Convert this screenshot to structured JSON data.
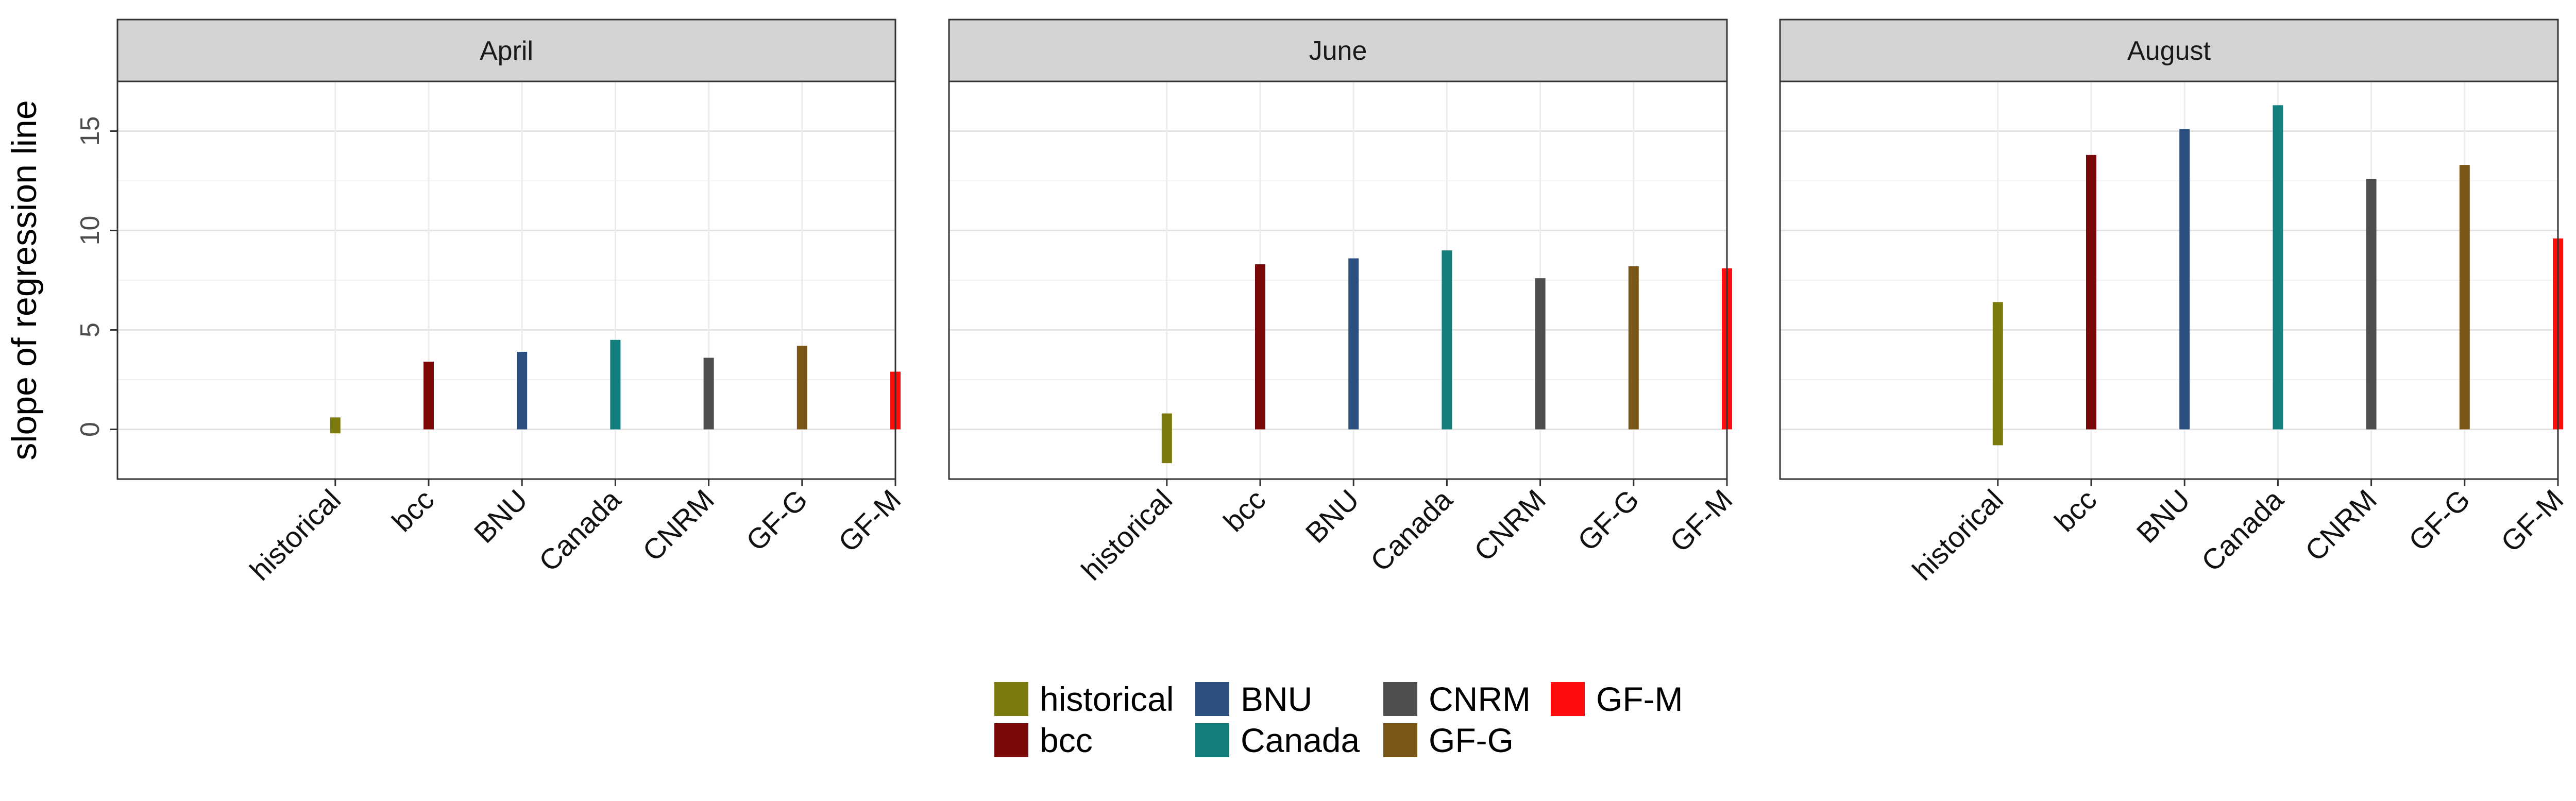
{
  "chart_data": {
    "type": "bar",
    "ylabel": "slope of regression line",
    "xlabel": "",
    "ylim": [
      -2.5,
      17.5
    ],
    "yticks": [
      0,
      5,
      10,
      15
    ],
    "grid": true,
    "legend_position": "bottom",
    "categories": [
      "historical",
      "bcc",
      "BNU",
      "Canada",
      "CNRM",
      "GF-G",
      "GF-M"
    ],
    "colors": {
      "historical": "#7b7a0c",
      "bcc": "#7a0808",
      "BNU": "#2b5080",
      "Canada": "#127e7e",
      "CNRM": "#4e4e4e",
      "GF-G": "#7a5617",
      "GF-M": "#ff0d0d"
    },
    "panels": [
      {
        "title": "April",
        "bars": [
          {
            "category": "historical",
            "low": -0.2,
            "high": 0.6
          },
          {
            "category": "bcc",
            "low": 0,
            "high": 3.4
          },
          {
            "category": "BNU",
            "low": 0,
            "high": 3.9
          },
          {
            "category": "Canada",
            "low": 0,
            "high": 4.5
          },
          {
            "category": "CNRM",
            "low": 0,
            "high": 3.6
          },
          {
            "category": "GF-G",
            "low": 0,
            "high": 4.2
          },
          {
            "category": "GF-M",
            "low": 0,
            "high": 2.9
          }
        ]
      },
      {
        "title": "June",
        "bars": [
          {
            "category": "historical",
            "low": -1.7,
            "high": 0.8
          },
          {
            "category": "bcc",
            "low": 0,
            "high": 8.3
          },
          {
            "category": "BNU",
            "low": 0,
            "high": 8.6
          },
          {
            "category": "Canada",
            "low": 0,
            "high": 9.0
          },
          {
            "category": "CNRM",
            "low": 0,
            "high": 7.6
          },
          {
            "category": "GF-G",
            "low": 0,
            "high": 8.2
          },
          {
            "category": "GF-M",
            "low": 0,
            "high": 8.1
          }
        ]
      },
      {
        "title": "August",
        "bars": [
          {
            "category": "historical",
            "low": -0.8,
            "high": 6.4
          },
          {
            "category": "bcc",
            "low": 0,
            "high": 13.8
          },
          {
            "category": "BNU",
            "low": 0,
            "high": 15.1
          },
          {
            "category": "Canada",
            "low": 0,
            "high": 16.3
          },
          {
            "category": "CNRM",
            "low": 0,
            "high": 12.6
          },
          {
            "category": "GF-G",
            "low": 0,
            "high": 13.3
          },
          {
            "category": "GF-M",
            "low": 0,
            "high": 9.6
          }
        ]
      }
    ],
    "legend": [
      "historical",
      "bcc",
      "BNU",
      "Canada",
      "CNRM",
      "GF-G",
      "GF-M"
    ]
  }
}
